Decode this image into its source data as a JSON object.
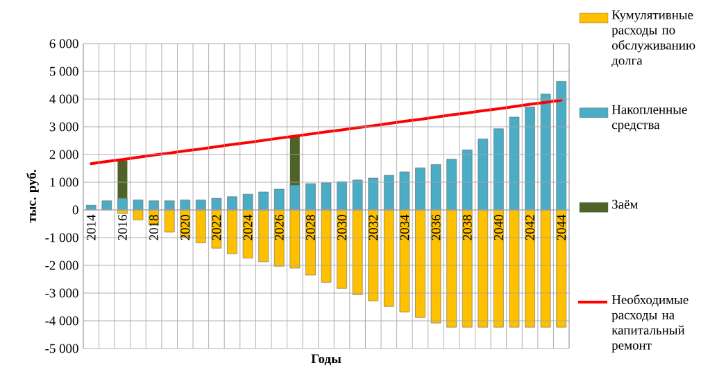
{
  "chart_data": {
    "type": "bar",
    "stacked": true,
    "xlabel": "Годы",
    "ylabel": "тыс. руб.",
    "categories": [
      "2014",
      null,
      "2016",
      null,
      "2018",
      null,
      "2020",
      null,
      "2022",
      null,
      "2024",
      null,
      "2026",
      null,
      "2028",
      null,
      "2030",
      null,
      "2032",
      null,
      "2034",
      null,
      "2036",
      null,
      "2038",
      null,
      "2040",
      null,
      "2042",
      null,
      "2044"
    ],
    "series": [
      {
        "name": "Кумулятивные расходы по обслуживанию долга",
        "color": "#ffc000",
        "values": [
          null,
          null,
          -130,
          -360,
          -550,
          -800,
          -1000,
          -1190,
          -1380,
          -1580,
          -1740,
          -1870,
          -2030,
          -2100,
          -2350,
          -2610,
          -2830,
          -3060,
          -3280,
          -3480,
          -3680,
          -3880,
          -4080,
          -4230,
          -4230,
          -4230,
          -4230,
          -4230,
          -4230,
          -4230,
          -4230
        ]
      },
      {
        "name": "Накопленные средства",
        "color": "#4bacc6",
        "values": [
          170,
          330,
          420,
          360,
          330,
          330,
          360,
          360,
          420,
          480,
          570,
          650,
          750,
          900,
          950,
          980,
          1020,
          1080,
          1150,
          1250,
          1375,
          1520,
          1640,
          1830,
          2170,
          2560,
          2930,
          3350,
          3720,
          4180,
          4640
        ]
      },
      {
        "name": "Заём",
        "color": "#4f6228",
        "values": [
          null,
          null,
          1370,
          null,
          null,
          null,
          null,
          null,
          null,
          null,
          null,
          null,
          null,
          1770,
          null,
          null,
          null,
          null,
          null,
          null,
          null,
          null,
          null,
          null,
          null,
          null,
          null,
          null,
          null,
          null,
          null
        ]
      },
      {
        "name": "Необходимые расходы на капитальный ремонт",
        "type": "line",
        "color": "#ff0000",
        "values": [
          1670,
          1750,
          1820,
          1900,
          1980,
          2050,
          2130,
          2200,
          2280,
          2360,
          2430,
          2510,
          2590,
          2660,
          2740,
          2820,
          2890,
          2970,
          3040,
          3120,
          3200,
          3270,
          3350,
          3430,
          3500,
          3580,
          3650,
          3730,
          3810,
          3880,
          3960
        ]
      }
    ],
    "ylim": [
      -5000,
      6000
    ],
    "yticks": [
      {
        "value": -5000,
        "label": "-5 000"
      },
      {
        "value": -4000,
        "label": "-4 000"
      },
      {
        "value": -3000,
        "label": "-3 000"
      },
      {
        "value": -2000,
        "label": "-2 000"
      },
      {
        "value": -1000,
        "label": "-1 000"
      },
      0,
      {
        "value": 1000,
        "label": "1 000"
      },
      {
        "value": 2000,
        "label": "2 000"
      },
      {
        "value": 3000,
        "label": "3 000"
      },
      {
        "value": 4000,
        "label": "4 000"
      },
      {
        "value": 5000,
        "label": "5 000"
      },
      {
        "value": 6000,
        "label": "6 000"
      }
    ],
    "grid": true,
    "legend": "right"
  }
}
